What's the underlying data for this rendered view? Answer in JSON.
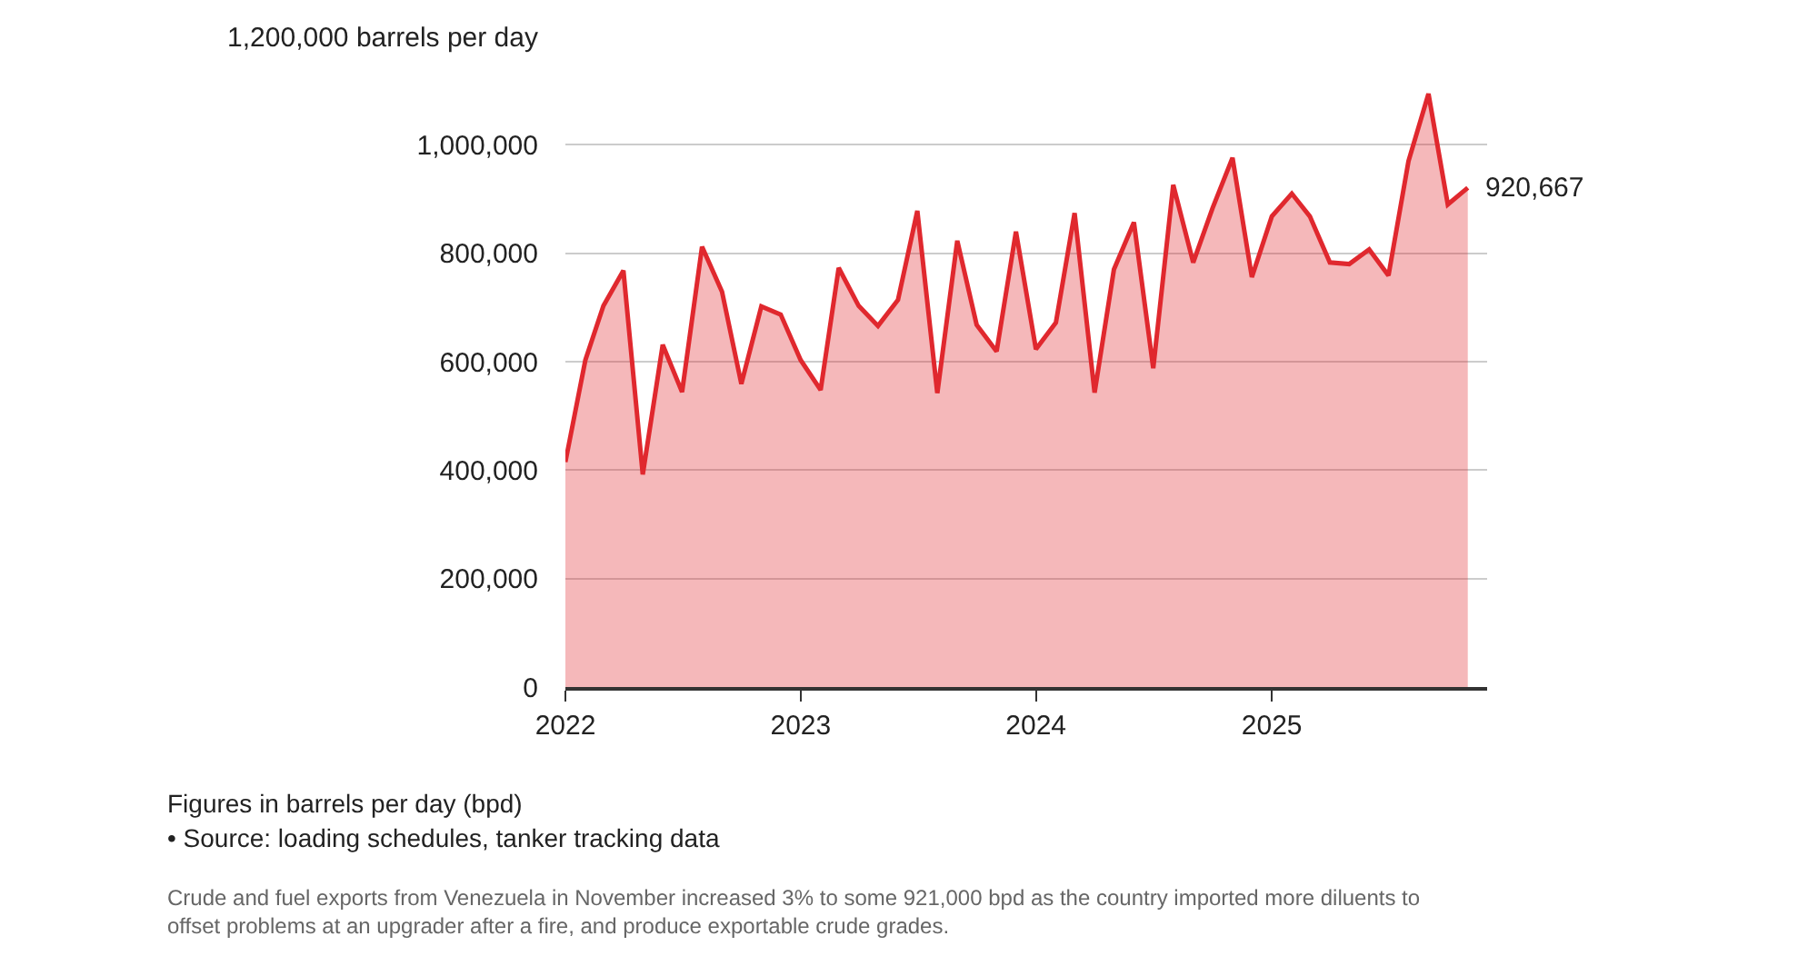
{
  "chart_data": {
    "type": "area",
    "x": [
      "2022-01",
      "2022-02",
      "2022-03",
      "2022-04",
      "2022-05",
      "2022-06",
      "2022-07",
      "2022-08",
      "2022-09",
      "2022-10",
      "2022-11",
      "2022-12",
      "2023-01",
      "2023-02",
      "2023-03",
      "2023-04",
      "2023-05",
      "2023-06",
      "2023-07",
      "2023-08",
      "2023-09",
      "2023-10",
      "2023-11",
      "2023-12",
      "2024-01",
      "2024-02",
      "2024-03",
      "2024-04",
      "2024-05",
      "2024-06",
      "2024-07",
      "2024-08",
      "2024-09",
      "2024-10",
      "2024-11",
      "2024-12",
      "2025-01",
      "2025-02",
      "2025-03",
      "2025-04",
      "2025-05",
      "2025-06",
      "2025-07",
      "2025-08",
      "2025-09",
      "2025-10",
      "2025-11"
    ],
    "series": [
      {
        "color": "#e0282e",
        "values": [
          415000,
          603000,
          703000,
          768000,
          392000,
          631000,
          544000,
          812000,
          729000,
          559000,
          702000,
          687000,
          603000,
          548000,
          773000,
          703000,
          666000,
          714000,
          878000,
          542000,
          823000,
          668000,
          619000,
          840000,
          623000,
          672000,
          874000,
          543000,
          770000,
          857000,
          588000,
          926000,
          783000,
          883000,
          976000,
          756000,
          868000,
          910000,
          868000,
          783000,
          780000,
          807000,
          759000,
          970000,
          1094000,
          890000,
          920667
        ]
      }
    ],
    "xlim": [
      "2022-01",
      "2025-12"
    ],
    "xticks": [
      {
        "value": "2022-01",
        "label": "2022"
      },
      {
        "value": "2023-01",
        "label": "2023"
      },
      {
        "value": "2024-01",
        "label": "2024"
      },
      {
        "value": "2025-01",
        "label": "2025"
      }
    ],
    "ylim": [
      0,
      1200000
    ],
    "yticks": [
      {
        "value": 0,
        "label": "0"
      },
      {
        "value": 200000,
        "label": "200,000"
      },
      {
        "value": 400000,
        "label": "400,000"
      },
      {
        "value": 600000,
        "label": "600,000"
      },
      {
        "value": 800000,
        "label": "800,000"
      },
      {
        "value": 1000000,
        "label": "1,000,000"
      },
      {
        "value": 1200000,
        "label": "1,200,000 barrels per day"
      }
    ],
    "grid": "y",
    "marker": "none",
    "line_style": "solid",
    "annotations": [
      {
        "text": "920,667",
        "x": "2025-11",
        "y": 920667
      },
      "Figures in barrels per day (bpd)",
      "• Source: loading schedules, tanker tracking data",
      "Crude and fuel exports from Venezuela in November increased 3% to some 921,000 bpd as the country imported more diluents to offset problems at an upgrader after a fire, and produce exportable crude grades."
    ]
  }
}
